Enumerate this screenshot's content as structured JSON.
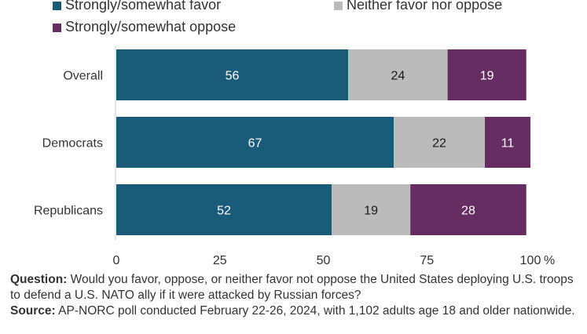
{
  "chart_data": {
    "type": "bar",
    "orientation": "horizontal",
    "stacked": true,
    "categories": [
      "Overall",
      "Democrats",
      "Republicans"
    ],
    "series": [
      {
        "name": "Strongly/somewhat favor",
        "values": [
          56,
          67,
          52
        ],
        "color": "#1a5b7a"
      },
      {
        "name": "Neither favor nor oppose",
        "values": [
          24,
          22,
          19
        ],
        "color": "#bbbbbb"
      },
      {
        "name": "Strongly/somewhat oppose",
        "values": [
          19,
          11,
          28
        ],
        "color": "#662d62"
      }
    ],
    "xlim": [
      0,
      100
    ],
    "x_ticks": [
      "0",
      "25",
      "50",
      "75",
      "100"
    ],
    "x_unit": "%",
    "grid": false,
    "legend_position": "top"
  },
  "notes": {
    "question_label": "Question:",
    "question_text": "Would you favor, oppose, or neither favor not oppose the United States deploying U.S. troops to defend a U.S. NATO ally if it were attacked by Russian forces?",
    "source_label": "Source:",
    "source_text": "AP-NORC poll conducted February 22-26, 2024, with 1,102 adults age 18 and older nationwide."
  }
}
